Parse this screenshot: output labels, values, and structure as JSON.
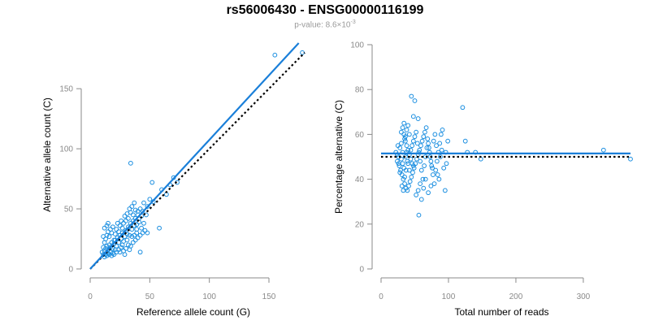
{
  "figure": {
    "title": "rs56006430 - ENSG00000116199",
    "subtitle": {
      "prefix": "p-value: 8.6×10",
      "exponent": "-3"
    },
    "colors": {
      "points": "#1a8ee0",
      "fit": "#1a7fd9",
      "reference": "#000000",
      "axis": "#8a8a8a"
    }
  },
  "chart_data": [
    {
      "type": "scatter",
      "xlabel": "Reference allele count (G)",
      "ylabel": "Alternative allele count (C)",
      "xlim": [
        0,
        180
      ],
      "ylim": [
        0,
        190
      ],
      "xticks": [
        0,
        50,
        100,
        150
      ],
      "yticks": [
        0,
        50,
        100,
        150
      ],
      "fit_line": {
        "x": [
          0,
          175
        ],
        "y": [
          0,
          188
        ]
      },
      "reference_line": {
        "x": [
          0,
          180
        ],
        "y": [
          0,
          180
        ]
      },
      "points": [
        [
          155,
          178
        ],
        [
          178,
          180
        ],
        [
          34,
          88
        ],
        [
          52,
          72
        ],
        [
          70,
          76
        ],
        [
          73,
          72
        ],
        [
          67,
          70
        ],
        [
          60,
          66
        ],
        [
          64,
          62
        ],
        [
          58,
          34
        ],
        [
          47,
          45
        ],
        [
          42,
          50
        ],
        [
          40,
          48
        ],
        [
          45,
          38
        ],
        [
          48,
          30
        ],
        [
          42,
          14
        ],
        [
          12,
          10
        ],
        [
          13,
          12
        ],
        [
          14,
          11
        ],
        [
          15,
          13
        ],
        [
          16,
          12
        ],
        [
          17,
          14
        ],
        [
          18,
          11
        ],
        [
          19,
          13
        ],
        [
          20,
          12
        ],
        [
          12,
          15
        ],
        [
          13,
          17
        ],
        [
          14,
          19
        ],
        [
          15,
          16
        ],
        [
          16,
          20
        ],
        [
          17,
          18
        ],
        [
          18,
          22
        ],
        [
          19,
          17
        ],
        [
          20,
          21
        ],
        [
          21,
          24
        ],
        [
          22,
          19
        ],
        [
          23,
          26
        ],
        [
          24,
          22
        ],
        [
          25,
          28
        ],
        [
          26,
          25
        ],
        [
          27,
          30
        ],
        [
          28,
          23
        ],
        [
          29,
          27
        ],
        [
          30,
          32
        ],
        [
          31,
          29
        ],
        [
          32,
          35
        ],
        [
          33,
          28
        ],
        [
          34,
          38
        ],
        [
          35,
          33
        ],
        [
          36,
          40
        ],
        [
          37,
          36
        ],
        [
          38,
          42
        ],
        [
          39,
          37
        ],
        [
          40,
          45
        ],
        [
          41,
          39
        ],
        [
          43,
          44
        ],
        [
          11,
          18
        ],
        [
          12,
          22
        ],
        [
          13,
          25
        ],
        [
          14,
          28
        ],
        [
          15,
          31
        ],
        [
          16,
          27
        ],
        [
          17,
          33
        ],
        [
          18,
          30
        ],
        [
          19,
          35
        ],
        [
          20,
          24
        ],
        [
          21,
          29
        ],
        [
          22,
          33
        ],
        [
          23,
          38
        ],
        [
          24,
          31
        ],
        [
          25,
          36
        ],
        [
          26,
          40
        ],
        [
          27,
          34
        ],
        [
          28,
          38
        ],
        [
          29,
          44
        ],
        [
          30,
          40
        ],
        [
          31,
          46
        ],
        [
          32,
          42
        ],
        [
          33,
          50
        ],
        [
          34,
          47
        ],
        [
          35,
          52
        ],
        [
          36,
          45
        ],
        [
          37,
          55
        ],
        [
          38,
          49
        ],
        [
          12,
          34
        ],
        [
          11,
          27
        ],
        [
          14,
          36
        ],
        [
          15,
          38
        ],
        [
          10,
          14
        ],
        [
          11,
          12
        ],
        [
          22,
          14
        ],
        [
          24,
          16
        ],
        [
          26,
          18
        ],
        [
          28,
          15
        ],
        [
          30,
          17
        ],
        [
          32,
          20
        ],
        [
          34,
          19
        ],
        [
          36,
          22
        ],
        [
          38,
          24
        ],
        [
          40,
          26
        ],
        [
          42,
          28
        ],
        [
          44,
          30
        ],
        [
          46,
          32
        ],
        [
          33,
          16
        ],
        [
          29,
          12
        ],
        [
          25,
          14
        ],
        [
          21,
          16
        ],
        [
          27,
          20
        ],
        [
          31,
          24
        ],
        [
          35,
          27
        ],
        [
          39,
          30
        ],
        [
          43,
          34
        ],
        [
          45,
          55
        ],
        [
          48,
          52
        ],
        [
          50,
          58
        ],
        [
          53,
          56
        ],
        [
          44,
          48
        ],
        [
          41,
          42
        ],
        [
          37,
          28
        ],
        [
          39,
          33
        ]
      ]
    },
    {
      "type": "scatter",
      "xlabel": "Total number of reads",
      "ylabel": "Percentage alternative (C)",
      "xlim": [
        0,
        370
      ],
      "ylim": [
        0,
        100
      ],
      "xticks": [
        0,
        100,
        200,
        300
      ],
      "yticks": [
        0,
        20,
        40,
        60,
        80,
        100
      ],
      "fit_line": {
        "x": [
          0,
          370
        ],
        "y": [
          51.5,
          51.5
        ]
      },
      "reference_line": {
        "x": [
          0,
          370
        ],
        "y": [
          50,
          50
        ]
      },
      "points": [
        [
          45,
          77
        ],
        [
          50,
          75
        ],
        [
          55,
          67
        ],
        [
          48,
          68
        ],
        [
          40,
          64
        ],
        [
          38,
          62
        ],
        [
          42,
          60
        ],
        [
          35,
          58
        ],
        [
          30,
          56
        ],
        [
          28,
          54
        ],
        [
          32,
          52
        ],
        [
          26,
          50
        ],
        [
          24,
          48
        ],
        [
          22,
          52
        ],
        [
          25,
          55
        ],
        [
          27,
          46
        ],
        [
          29,
          44
        ],
        [
          31,
          42
        ],
        [
          33,
          40
        ],
        [
          35,
          38
        ],
        [
          37,
          36
        ],
        [
          39,
          35
        ],
        [
          41,
          37
        ],
        [
          43,
          39
        ],
        [
          45,
          41
        ],
        [
          47,
          43
        ],
        [
          49,
          45
        ],
        [
          51,
          47
        ],
        [
          53,
          49
        ],
        [
          55,
          51
        ],
        [
          57,
          53
        ],
        [
          59,
          55
        ],
        [
          61,
          57
        ],
        [
          63,
          59
        ],
        [
          65,
          61
        ],
        [
          67,
          63
        ],
        [
          69,
          58
        ],
        [
          71,
          54
        ],
        [
          73,
          50
        ],
        [
          75,
          46
        ],
        [
          77,
          42
        ],
        [
          79,
          38
        ],
        [
          81,
          44
        ],
        [
          83,
          48
        ],
        [
          85,
          52
        ],
        [
          87,
          56
        ],
        [
          89,
          60
        ],
        [
          91,
          62
        ],
        [
          34,
          60
        ],
        [
          36,
          57
        ],
        [
          38,
          55
        ],
        [
          40,
          53
        ],
        [
          42,
          51
        ],
        [
          44,
          49
        ],
        [
          46,
          47
        ],
        [
          48,
          46
        ],
        [
          30,
          61
        ],
        [
          32,
          63
        ],
        [
          34,
          65
        ],
        [
          36,
          59
        ],
        [
          52,
          33
        ],
        [
          55,
          35
        ],
        [
          60,
          31
        ],
        [
          63,
          36
        ],
        [
          58,
          38
        ],
        [
          66,
          40
        ],
        [
          70,
          34
        ],
        [
          74,
          37
        ],
        [
          56,
          24
        ],
        [
          95,
          35
        ],
        [
          93,
          45
        ],
        [
          97,
          47
        ],
        [
          99,
          57
        ],
        [
          96,
          52
        ],
        [
          121,
          72
        ],
        [
          125,
          57
        ],
        [
          128,
          52
        ],
        [
          140,
          52
        ],
        [
          148,
          49
        ],
        [
          330,
          53
        ],
        [
          370,
          49
        ],
        [
          28,
          43
        ],
        [
          26,
          47
        ],
        [
          24,
          51
        ],
        [
          30,
          49
        ],
        [
          32,
          47
        ],
        [
          34,
          45
        ],
        [
          36,
          50
        ],
        [
          38,
          52
        ],
        [
          40,
          47
        ],
        [
          42,
          44
        ],
        [
          44,
          53
        ],
        [
          46,
          55
        ],
        [
          48,
          57
        ],
        [
          50,
          59
        ],
        [
          52,
          61
        ],
        [
          54,
          56
        ],
        [
          56,
          52
        ],
        [
          58,
          48
        ],
        [
          60,
          44
        ],
        [
          62,
          40
        ],
        [
          64,
          46
        ],
        [
          66,
          50
        ],
        [
          68,
          54
        ],
        [
          70,
          56
        ],
        [
          72,
          52
        ],
        [
          74,
          48
        ],
        [
          76,
          45
        ],
        [
          78,
          57
        ],
        [
          80,
          60
        ],
        [
          82,
          55
        ],
        [
          84,
          42
        ],
        [
          86,
          40
        ],
        [
          88,
          50
        ],
        [
          90,
          53
        ],
        [
          31,
          37
        ],
        [
          33,
          35
        ],
        [
          35,
          41
        ],
        [
          37,
          44
        ],
        [
          39,
          48
        ]
      ]
    }
  ]
}
